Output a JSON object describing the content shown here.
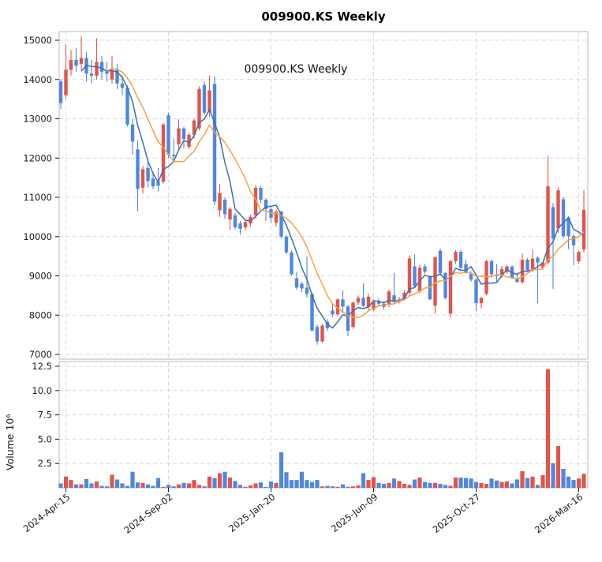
{
  "title": "009900.KS  Weekly",
  "annotation": "009900.KS  Weekly",
  "chart_data": {
    "type": "candlestick",
    "symbol": "009900.KS",
    "interval": "Weekly",
    "title": "009900.KS  Weekly",
    "columns": [
      "open",
      "high",
      "low",
      "close",
      "volume_millions"
    ],
    "ohlcv": [
      [
        13950,
        14000,
        13250,
        13400,
        0.45
      ],
      [
        13600,
        14900,
        13500,
        14250,
        1.15
      ],
      [
        14250,
        14750,
        14100,
        14500,
        0.8
      ],
      [
        14500,
        14800,
        14200,
        14350,
        0.35
      ],
      [
        14400,
        15100,
        14250,
        14550,
        0.35
      ],
      [
        14550,
        14700,
        13950,
        14150,
        0.9
      ],
      [
        14150,
        14500,
        13900,
        14100,
        0.45
      ],
      [
        14100,
        15050,
        14000,
        14450,
        0.65
      ],
      [
        14450,
        14600,
        14000,
        14200,
        0.2
      ],
      [
        14200,
        14450,
        13950,
        14150,
        0.15
      ],
      [
        14000,
        14600,
        13900,
        14250,
        1.35
      ],
      [
        14250,
        14400,
        13750,
        13900,
        0.85
      ],
      [
        13900,
        14100,
        13600,
        13790,
        0.45
      ],
      [
        13790,
        13850,
        12800,
        12855,
        0.2
      ],
      [
        12855,
        13000,
        12085,
        12420,
        1.65
      ],
      [
        12220,
        12450,
        10650,
        11215,
        0.55
      ],
      [
        11245,
        11800,
        11100,
        11715,
        0.5
      ],
      [
        11750,
        11900,
        11250,
        11415,
        0.35
      ],
      [
        11480,
        11650,
        11210,
        11280,
        0.2
      ],
      [
        11400,
        11750,
        11150,
        11300,
        1.0
      ],
      [
        11400,
        12900,
        11350,
        12855,
        0.1
      ],
      [
        13090,
        13150,
        12000,
        12085,
        0.3
      ],
      [
        12085,
        12500,
        11950,
        12050,
        0.15
      ],
      [
        12355,
        12990,
        12200,
        12755,
        0.35
      ],
      [
        12755,
        12800,
        12250,
        12485,
        0.5
      ],
      [
        12285,
        12650,
        12230,
        12590,
        0.45
      ],
      [
        12590,
        13000,
        12500,
        12955,
        0.8
      ],
      [
        12755,
        13825,
        12700,
        13760,
        0.3
      ],
      [
        13860,
        13950,
        13100,
        13155,
        0.15
      ],
      [
        13165,
        14100,
        13050,
        13725,
        1.15
      ],
      [
        13890,
        14080,
        10800,
        10890,
        1.0
      ],
      [
        10670,
        11345,
        10500,
        11105,
        1.5
      ],
      [
        10940,
        11000,
        10450,
        10570,
        1.65
      ],
      [
        10435,
        10750,
        10170,
        10705,
        1.05
      ],
      [
        10540,
        10600,
        10180,
        10235,
        0.7
      ],
      [
        10335,
        10400,
        10050,
        10200,
        0.3
      ],
      [
        10235,
        10420,
        10150,
        10370,
        0.1
      ],
      [
        10335,
        10560,
        10250,
        10505,
        0.25
      ],
      [
        10540,
        11310,
        10450,
        11240,
        0.45
      ],
      [
        11240,
        11300,
        10850,
        10940,
        0.55
      ],
      [
        10940,
        10980,
        10400,
        10700,
        0.1
      ],
      [
        10700,
        10750,
        10350,
        10480,
        0.65
      ],
      [
        10350,
        10680,
        10250,
        10640,
        0.5
      ],
      [
        10640,
        10660,
        9950,
        10000,
        3.65
      ],
      [
        10000,
        10050,
        9550,
        9600,
        1.6
      ],
      [
        9600,
        9650,
        9000,
        9040,
        0.8
      ],
      [
        8940,
        9100,
        8650,
        8700,
        0.8
      ],
      [
        8800,
        8850,
        8580,
        8680,
        1.65
      ],
      [
        8700,
        9500,
        8450,
        8540,
        0.8
      ],
      [
        8540,
        8560,
        7580,
        7610,
        0.6
      ],
      [
        7700,
        7760,
        7250,
        7330,
        0.8
      ],
      [
        7330,
        7780,
        7300,
        7730,
        0.15
      ],
      [
        7830,
        7900,
        7600,
        7670,
        0.2
      ],
      [
        8120,
        8300,
        7950,
        8020,
        0.15
      ],
      [
        8020,
        8430,
        7980,
        8400,
        0.1
      ],
      [
        8400,
        8630,
        8050,
        8220,
        0.35
      ],
      [
        8220,
        8260,
        7460,
        7600,
        0.1
      ],
      [
        7700,
        8350,
        7650,
        8320,
        0.15
      ],
      [
        8320,
        8500,
        8250,
        8440,
        0.25
      ],
      [
        8440,
        8810,
        8200,
        8240,
        1.5
      ],
      [
        8205,
        8550,
        8130,
        8470,
        0.8
      ],
      [
        8140,
        8400,
        8100,
        8340,
        1.1
      ],
      [
        8340,
        8430,
        8230,
        8290,
        0.5
      ],
      [
        8290,
        8360,
        8150,
        8210,
        0.4
      ],
      [
        8270,
        8650,
        8200,
        8605,
        0.5
      ],
      [
        8505,
        9075,
        8300,
        8340,
        0.95
      ],
      [
        8340,
        8470,
        8300,
        8400,
        0.7
      ],
      [
        8420,
        8640,
        8380,
        8570,
        0.4
      ],
      [
        8571,
        9520,
        8500,
        9442,
        0.3
      ],
      [
        9241,
        9543,
        8700,
        8739,
        0.85
      ],
      [
        8605,
        9280,
        8560,
        9208,
        1.05
      ],
      [
        9240,
        9300,
        9050,
        9107,
        0.6
      ],
      [
        8970,
        9000,
        8380,
        8404,
        0.5
      ],
      [
        8240,
        9500,
        8040,
        9475,
        0.5
      ],
      [
        9640,
        9700,
        9000,
        9074,
        0.4
      ],
      [
        9074,
        9100,
        8400,
        8437,
        0.3
      ],
      [
        8040,
        9400,
        7930,
        9375,
        0.2
      ],
      [
        9375,
        9650,
        9300,
        9610,
        1.05
      ],
      [
        9610,
        9660,
        9150,
        9208,
        1.05
      ],
      [
        9300,
        9410,
        9050,
        9074,
        1.0
      ],
      [
        9074,
        9120,
        8850,
        8905,
        0.95
      ],
      [
        8905,
        8950,
        8100,
        8305,
        0.6
      ],
      [
        8305,
        8460,
        8170,
        8440,
        0.5
      ],
      [
        8540,
        9410,
        8500,
        9375,
        0.4
      ],
      [
        9375,
        9420,
        9000,
        9040,
        0.95
      ],
      [
        9040,
        9300,
        8850,
        9000,
        0.75
      ],
      [
        9000,
        9250,
        8950,
        9175,
        0.6
      ],
      [
        9100,
        9280,
        9050,
        9240,
        0.65
      ],
      [
        9240,
        9260,
        8920,
        8940,
        0.45
      ],
      [
        8940,
        9080,
        8830,
        8840,
        0.86
      ],
      [
        8840,
        9575,
        8800,
        9410,
        1.72
      ],
      [
        9410,
        9450,
        9130,
        9140,
        1.0
      ],
      [
        9140,
        9675,
        9100,
        9440,
        1.15
      ],
      [
        9460,
        9500,
        8300,
        9340,
        0.3
      ],
      [
        9210,
        9360,
        9150,
        9340,
        1.3
      ],
      [
        9340,
        12070,
        9300,
        11280,
        12.2
      ],
      [
        10750,
        10850,
        8670,
        9950,
        2.53
      ],
      [
        10210,
        11250,
        10100,
        11180,
        4.3
      ],
      [
        10950,
        11000,
        9950,
        10010,
        1.95
      ],
      [
        10480,
        10520,
        9680,
        10010,
        1.15
      ],
      [
        10010,
        10060,
        9270,
        9780,
        0.8
      ],
      [
        9370,
        9640,
        9300,
        9610,
        0.95
      ],
      [
        9675,
        11180,
        9600,
        10680,
        1.44
      ]
    ],
    "x_ticks": {
      "indices": [
        1,
        21,
        41,
        61,
        81,
        101
      ],
      "labels": [
        "2024-Apr-15",
        "2024-Sep-02",
        "2025-Jan-20",
        "2025-Jun-09",
        "2025-Oct-27",
        "2026-Mar-16"
      ]
    },
    "price_axis": {
      "ticks": [
        7000,
        8000,
        9000,
        10000,
        11000,
        12000,
        13000,
        14000,
        15000
      ],
      "range": [
        6950,
        15250
      ]
    },
    "volume_axis": {
      "ticks": [
        2.5,
        5.0,
        7.5,
        10.0,
        12.5
      ],
      "range": [
        0,
        12.9
      ],
      "label": "Volume  10⁶"
    },
    "moving_averages": [
      {
        "window": 5,
        "color": "#3b6fb3"
      },
      {
        "window": 10,
        "color": "#f8a13f"
      }
    ],
    "colors": {
      "up": "#e35449",
      "down": "#4e87e0",
      "grid": "#d9d9d9",
      "spine": "#c4c4c4",
      "text": "#1a1a1a"
    },
    "grid_style": "dashed",
    "legend": "none"
  }
}
